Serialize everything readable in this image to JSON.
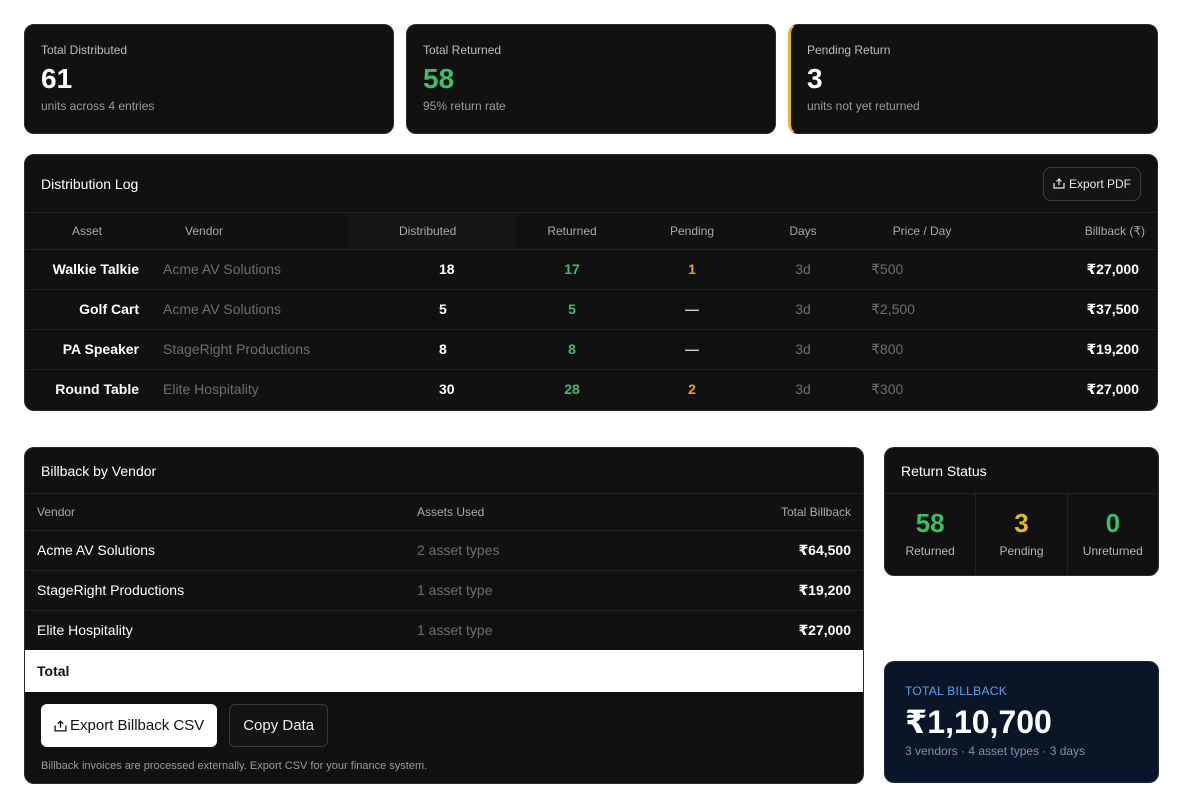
{
  "stats": [
    {
      "label": "Total Distributed",
      "value": "61",
      "sub": "units across 4 entries"
    },
    {
      "label": "Total Returned",
      "value": "58",
      "sub": "95% return rate"
    },
    {
      "label": "Pending Return",
      "value": "3",
      "sub": "units not yet returned"
    }
  ],
  "log": {
    "title": "Distribution Log",
    "export_label": "Export PDF",
    "export_icon": "export-icon",
    "columns": [
      "Asset",
      "Vendor",
      "Distributed",
      "Returned",
      "Pending",
      "Days",
      "Price / Day",
      "Billback (₹)"
    ],
    "rows": [
      {
        "asset": "Walkie Talkie",
        "vendor": "Acme AV Solutions",
        "distributed": "18",
        "returned": "17",
        "pending": "1",
        "days": "3d",
        "price": "₹500",
        "billback": "₹27,000"
      },
      {
        "asset": "Golf Cart",
        "vendor": "Acme AV Solutions",
        "distributed": "5",
        "returned": "5",
        "pending": "—",
        "days": "3d",
        "price": "₹2,500",
        "billback": "₹37,500"
      },
      {
        "asset": "PA Speaker",
        "vendor": "StageRight Productions",
        "distributed": "8",
        "returned": "8",
        "pending": "—",
        "days": "3d",
        "price": "₹800",
        "billback": "₹19,200"
      },
      {
        "asset": "Round Table",
        "vendor": "Elite Hospitality",
        "distributed": "30",
        "returned": "28",
        "pending": "2",
        "days": "3d",
        "price": "₹300",
        "billback": "₹27,000"
      }
    ]
  },
  "vendors": {
    "title": "Billback by Vendor",
    "columns": [
      "Vendor",
      "Assets Used",
      "Total Billback"
    ],
    "rows": [
      {
        "vendor": "Acme AV Solutions",
        "used": "2 asset types",
        "billback": "₹64,500"
      },
      {
        "vendor": "StageRight Productions",
        "used": "1 asset type",
        "billback": "₹19,200"
      },
      {
        "vendor": "Elite Hospitality",
        "used": "1 asset type",
        "billback": "₹27,000"
      }
    ],
    "total_label": "Total",
    "export_csv_label": "Export Billback CSV",
    "copy_label": "Copy Data",
    "note": "Billback invoices are processed externally. Export CSV for your finance system."
  },
  "return_status": {
    "title": "Return Status",
    "items": [
      {
        "value": "58",
        "label": "Returned"
      },
      {
        "value": "3",
        "label": "Pending"
      },
      {
        "value": "0",
        "label": "Unreturned"
      }
    ]
  },
  "total_billback": {
    "label": "TOTAL BILLBACK",
    "value": "₹1,10,700",
    "sub": "3 vendors · 4 asset types · 3 days"
  },
  "colors": {
    "card_bg": "#111112",
    "green": "#3dbd6a",
    "orange": "#e8a030",
    "yellow": "#e2b824",
    "navy": "#0a1628",
    "blue_label": "#5a9ff0"
  }
}
